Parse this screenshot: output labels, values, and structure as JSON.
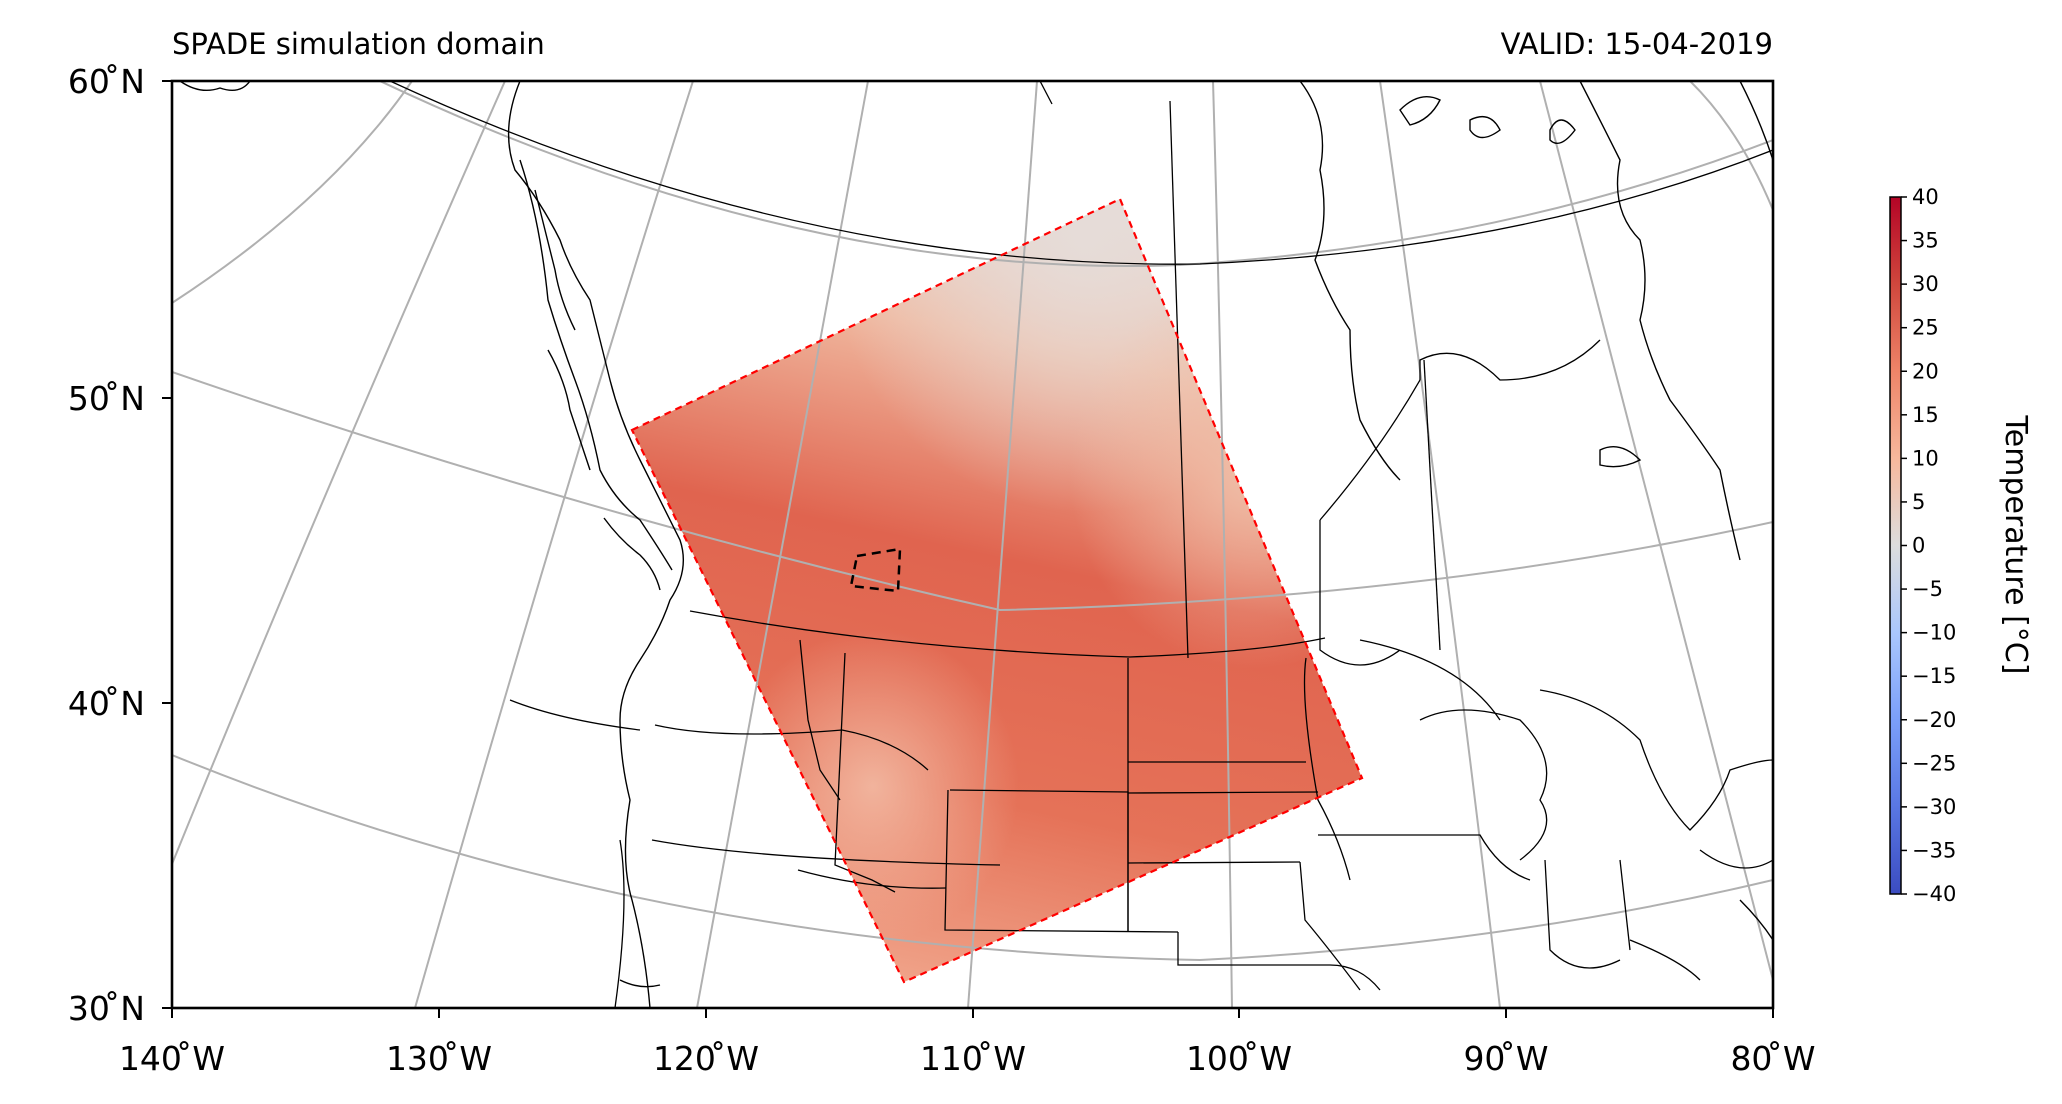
{
  "header": {
    "title_left": "SPADE simulation domain",
    "title_right": "VALID: 15-04-2019"
  },
  "axes": {
    "lon_ticks": [
      "140$^\\circ$W",
      "130$^\\circ$W",
      "120$^\\circ$W",
      "110$^\\circ$W",
      "100$^\\circ$W",
      "90$^\\circ$W",
      "80$^\\circ$W"
    ],
    "lon_tick_labels": [
      "140 ̊W",
      "130 ̊W",
      "120 ̊W",
      "110 ̊W",
      "100 ̊W",
      "90 ̊W",
      "80 ̊W"
    ],
    "lat_tick_labels": [
      "30 ̊N",
      "40 ̊N",
      "50 ̊N",
      "60 ̊N"
    ],
    "lon_range": [
      -140,
      -80
    ],
    "lat_range": [
      30,
      60
    ]
  },
  "colorbar": {
    "label": "Temperature [°C]",
    "ticks": [
      "40",
      "35",
      "30",
      "25",
      "20",
      "15",
      "10",
      "5",
      "0",
      "−5",
      "−10",
      "−15",
      "−20",
      "−25",
      "−30",
      "−35",
      "−40"
    ],
    "range": [
      -40,
      40
    ],
    "colormap": "coolwarm",
    "low_color": "#3b4cc0",
    "mid_color": "#dddddd",
    "high_color": "#b40426"
  },
  "map": {
    "domain_outline_color": "#ff0000",
    "subdomain_outline_color": "#000000",
    "field_color_warm": "#e0644f",
    "field_color_cool": "#e6dcd8",
    "graticule_color": "#b0b0b0"
  }
}
